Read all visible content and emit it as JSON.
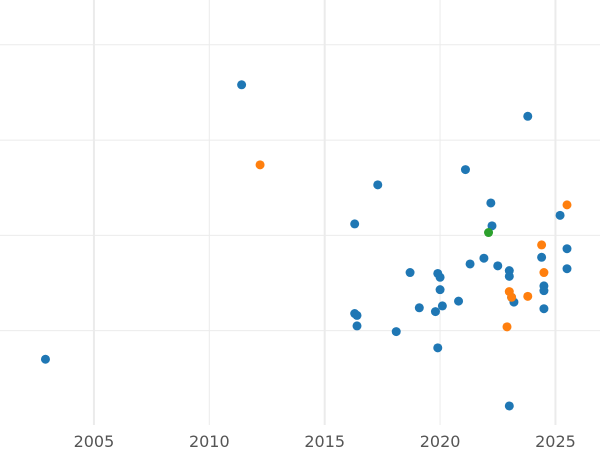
{
  "chart_data": {
    "type": "scatter",
    "title": "",
    "xlabel": "",
    "ylabel": "",
    "x_ticks": [
      "2005",
      "2010",
      "2015",
      "2020",
      "2025"
    ],
    "x_tick_values": [
      2005,
      2010,
      2015,
      2020,
      2025
    ],
    "y_gridlines": [
      0,
      1,
      2,
      3
    ],
    "y_tick_labels_visible": false,
    "xlim": [
      2000.93,
      2026.93
    ],
    "ylim": [
      -0.99,
      3.47
    ],
    "grid": true,
    "legend": "none",
    "series": [
      {
        "name": "blue",
        "color": "#1f77b4",
        "points": [
          [
            2011.4,
            2.58
          ],
          [
            2023.8,
            2.25
          ],
          [
            2017.3,
            1.53
          ],
          [
            2021.1,
            1.69
          ],
          [
            2022.2,
            1.34
          ],
          [
            2016.3,
            1.12
          ],
          [
            2022.25,
            1.1
          ],
          [
            2025.2,
            1.21
          ],
          [
            2025.5,
            0.86
          ],
          [
            2024.4,
            0.77
          ],
          [
            2021.3,
            0.7
          ],
          [
            2021.9,
            0.76
          ],
          [
            2022.5,
            0.68
          ],
          [
            2018.7,
            0.61
          ],
          [
            2019.9,
            0.6
          ],
          [
            2020.0,
            0.56
          ],
          [
            2023.0,
            0.63
          ],
          [
            2023.0,
            0.57
          ],
          [
            2025.5,
            0.65
          ],
          [
            2020.0,
            0.43
          ],
          [
            2024.5,
            0.47
          ],
          [
            2024.5,
            0.42
          ],
          [
            2020.8,
            0.31
          ],
          [
            2020.1,
            0.26
          ],
          [
            2019.1,
            0.24
          ],
          [
            2019.8,
            0.2
          ],
          [
            2023.2,
            0.3
          ],
          [
            2023.1,
            0.35
          ],
          [
            2024.5,
            0.23
          ],
          [
            2016.3,
            0.18
          ],
          [
            2016.4,
            0.16
          ],
          [
            2016.4,
            0.05
          ],
          [
            2018.1,
            -0.01
          ],
          [
            2019.9,
            -0.18
          ],
          [
            2002.9,
            -0.3
          ],
          [
            2023.0,
            -0.79
          ]
        ]
      },
      {
        "name": "orange",
        "color": "#ff7f0e",
        "points": [
          [
            2012.2,
            1.74
          ],
          [
            2025.5,
            1.32
          ],
          [
            2024.4,
            0.9
          ],
          [
            2024.5,
            0.61
          ],
          [
            2023.0,
            0.41
          ],
          [
            2023.1,
            0.35
          ],
          [
            2023.8,
            0.36
          ],
          [
            2022.9,
            0.04
          ]
        ]
      },
      {
        "name": "green",
        "color": "#2ca02c",
        "points": [
          [
            2022.1,
            1.03
          ]
        ]
      }
    ]
  }
}
